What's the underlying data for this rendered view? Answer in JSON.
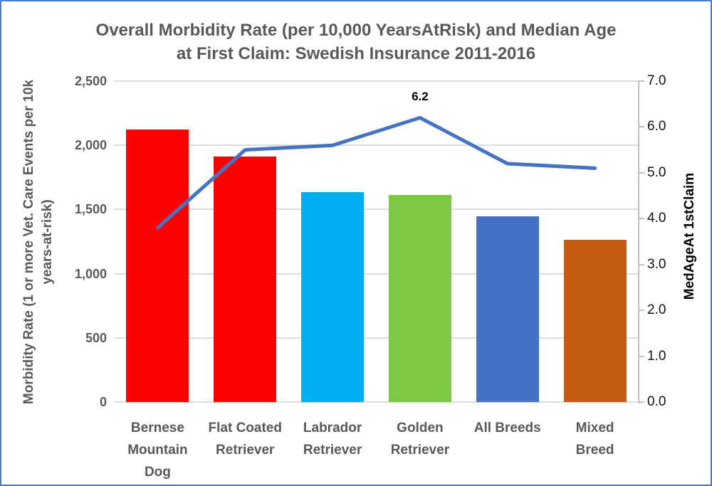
{
  "window": {
    "background": "#FFFFFF",
    "border_color": "#4B7ED0"
  },
  "chart": {
    "title_line1": "Overall Morbidity Rate (per 10,000 YearsAtRisk) and Median Age",
    "title_line2": "at First Claim: Swedish Insurance 2011-2016",
    "left_axis_title_line1": "Morbidity Rate (1 or more Vet. Care Events per 10k",
    "left_axis_title_line2": "years-at-risk)",
    "right_axis_title": "MedAgeAt 1stClaim"
  },
  "chart_data": {
    "type": "combo-bar-line",
    "title": "Overall Morbidity Rate (per 10,000 YearsAtRisk) and Median Age at First Claim: Swedish Insurance 2011-2016",
    "categories": [
      "Bernese Mountain Dog",
      "Flat Coated Retriever",
      "Labrador Retriever",
      "Golden Retriever",
      "All Breeds",
      "Mixed Breed"
    ],
    "category_label_lines": [
      [
        "Bernese",
        "Mountain",
        "Dog"
      ],
      [
        "Flat Coated",
        "Retriever"
      ],
      [
        "Labrador",
        "Retriever"
      ],
      [
        "Golden",
        "Retriever"
      ],
      [
        "All Breeds"
      ],
      [
        "Mixed",
        "Breed"
      ]
    ],
    "series": [
      {
        "name": "Morbidity Rate (1 or more Vet. Care Events per 10k years-at-risk)",
        "type": "bar",
        "axis": "left",
        "values": [
          2125,
          1915,
          1635,
          1615,
          1445,
          1265
        ],
        "bar_colors": [
          "#FE0000",
          "#FE0000",
          "#00AFF0",
          "#7DC942",
          "#4472C4",
          "#C55A11"
        ]
      },
      {
        "name": "MedAgeAt 1stClaim",
        "type": "line",
        "axis": "right",
        "values": [
          3.8,
          5.5,
          5.6,
          6.2,
          5.2,
          5.1
        ],
        "color": "#4472C4",
        "labeled_point": {
          "index": 3,
          "text": "6.2"
        }
      }
    ],
    "left_axis": {
      "label": "Morbidity Rate (1 or more Vet. Care Events per 10k years-at-risk)",
      "min": 0,
      "max": 2500,
      "step": 500,
      "tick_labels": [
        "0",
        "500",
        "1,000",
        "1,500",
        "2,000",
        "2,500"
      ]
    },
    "right_axis": {
      "label": "MedAgeAt 1stClaim",
      "min": 0,
      "max": 7,
      "step": 1,
      "tick_labels": [
        "0.0",
        "1.0",
        "2.0",
        "3.0",
        "4.0",
        "5.0",
        "6.0",
        "7.0"
      ]
    },
    "grid": "horizontal",
    "legend": "none",
    "colors": {
      "gridline": "#DCDCDC",
      "axis_line": "#BFBFBF",
      "axis_text": "#595959",
      "right_tick_text": "#111111",
      "title_text": "#595959",
      "data_label_text": "#000000"
    }
  }
}
